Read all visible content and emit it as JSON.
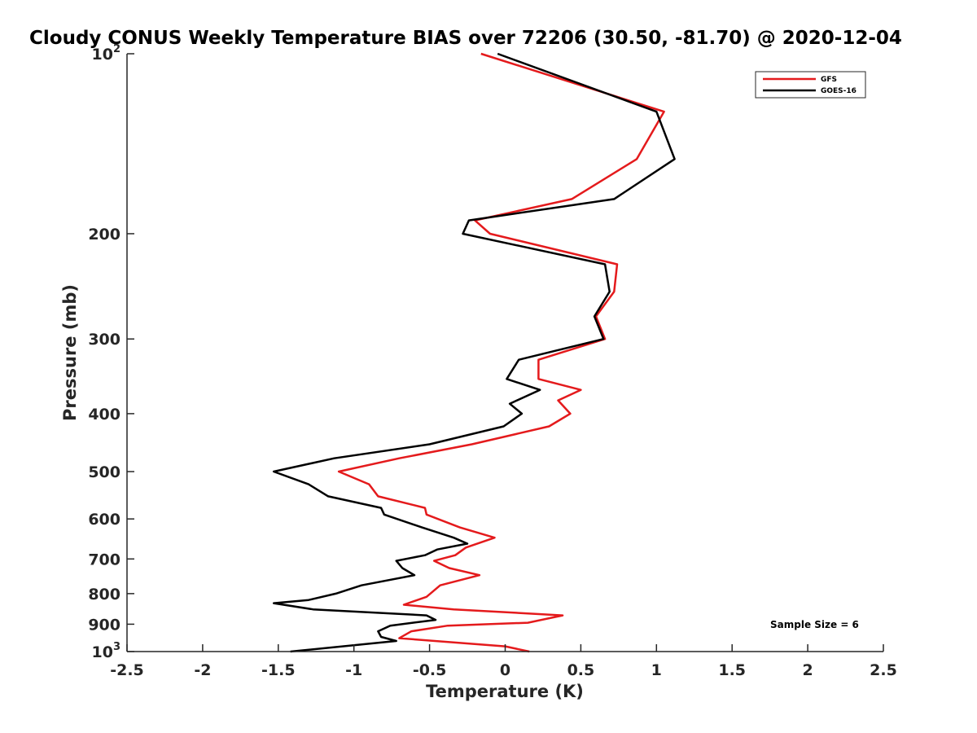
{
  "chart_data": {
    "type": "line",
    "title": "Cloudy CONUS Weekly Temperature BIAS over 72206 (30.50, -81.70) @ 2020-12-04",
    "xlabel": "Temperature (K)",
    "ylabel": "Pressure (mb)",
    "xlim": [
      -2.5,
      2.5
    ],
    "ylim": [
      100,
      1000
    ],
    "y_scale": "log",
    "y_reversed": true,
    "x_ticks": [
      "-2.5",
      "-2",
      "-1.5",
      "-1",
      "-0.5",
      "0",
      "0.5",
      "1",
      "1.5",
      "2",
      "2.5"
    ],
    "x_tick_values": [
      -2.5,
      -2,
      -1.5,
      -1,
      -0.5,
      0,
      0.5,
      1,
      1.5,
      2,
      2.5
    ],
    "y_ticks": [
      {
        "value": 100,
        "base": "10",
        "exp": "2"
      },
      {
        "value": 200,
        "label": "200"
      },
      {
        "value": 300,
        "label": "300"
      },
      {
        "value": 400,
        "label": "400"
      },
      {
        "value": 500,
        "label": "500"
      },
      {
        "value": 600,
        "label": "600"
      },
      {
        "value": 700,
        "label": "700"
      },
      {
        "value": 800,
        "label": "800"
      },
      {
        "value": 900,
        "label": "900"
      },
      {
        "value": 1000,
        "base": "10",
        "exp": "3"
      }
    ],
    "legend_position": "top-right",
    "annotation": "Sample Size = 6",
    "series": [
      {
        "name": "GFS",
        "color": "#e41a1c",
        "points": [
          [
            -0.16,
            100
          ],
          [
            1.05,
            125
          ],
          [
            0.87,
            150
          ],
          [
            0.44,
            175
          ],
          [
            -0.2,
            190
          ],
          [
            -0.1,
            200
          ],
          [
            0.74,
            225
          ],
          [
            0.72,
            250
          ],
          [
            0.6,
            275
          ],
          [
            0.66,
            300
          ],
          [
            0.22,
            325
          ],
          [
            0.22,
            350
          ],
          [
            0.5,
            365
          ],
          [
            0.35,
            380
          ],
          [
            0.43,
            400
          ],
          [
            0.29,
            420
          ],
          [
            -0.22,
            450
          ],
          [
            -0.7,
            475
          ],
          [
            -1.1,
            500
          ],
          [
            -0.9,
            525
          ],
          [
            -0.84,
            550
          ],
          [
            -0.53,
            575
          ],
          [
            -0.52,
            590
          ],
          [
            -0.3,
            620
          ],
          [
            -0.07,
            645
          ],
          [
            -0.26,
            670
          ],
          [
            -0.33,
            690
          ],
          [
            -0.47,
            705
          ],
          [
            -0.37,
            725
          ],
          [
            -0.17,
            745
          ],
          [
            -0.43,
            775
          ],
          [
            -0.52,
            810
          ],
          [
            -0.67,
            835
          ],
          [
            -0.34,
            850
          ],
          [
            0.38,
            870
          ],
          [
            0.15,
            895
          ],
          [
            -0.38,
            905
          ],
          [
            -0.62,
            925
          ],
          [
            -0.7,
            950
          ],
          [
            0.0,
            980
          ],
          [
            0.16,
            1000
          ]
        ]
      },
      {
        "name": "GOES-16",
        "color": "#000000",
        "points": [
          [
            -0.05,
            100
          ],
          [
            1.0,
            125
          ],
          [
            1.12,
            150
          ],
          [
            0.72,
            175
          ],
          [
            -0.24,
            190
          ],
          [
            -0.28,
            200
          ],
          [
            0.66,
            225
          ],
          [
            0.69,
            250
          ],
          [
            0.59,
            275
          ],
          [
            0.65,
            300
          ],
          [
            0.09,
            325
          ],
          [
            0.01,
            350
          ],
          [
            0.23,
            365
          ],
          [
            0.03,
            385
          ],
          [
            0.11,
            400
          ],
          [
            -0.01,
            420
          ],
          [
            -0.5,
            450
          ],
          [
            -1.13,
            475
          ],
          [
            -1.53,
            500
          ],
          [
            -1.3,
            525
          ],
          [
            -1.17,
            550
          ],
          [
            -0.82,
            575
          ],
          [
            -0.8,
            590
          ],
          [
            -0.55,
            620
          ],
          [
            -0.34,
            645
          ],
          [
            -0.25,
            660
          ],
          [
            -0.45,
            675
          ],
          [
            -0.53,
            690
          ],
          [
            -0.72,
            705
          ],
          [
            -0.68,
            725
          ],
          [
            -0.6,
            745
          ],
          [
            -0.95,
            775
          ],
          [
            -1.12,
            800
          ],
          [
            -1.3,
            820
          ],
          [
            -1.53,
            830
          ],
          [
            -1.27,
            850
          ],
          [
            -0.52,
            870
          ],
          [
            -0.46,
            885
          ],
          [
            -0.76,
            905
          ],
          [
            -0.84,
            925
          ],
          [
            -0.82,
            945
          ],
          [
            -0.72,
            960
          ],
          [
            -1.42,
            1000
          ]
        ]
      }
    ]
  }
}
